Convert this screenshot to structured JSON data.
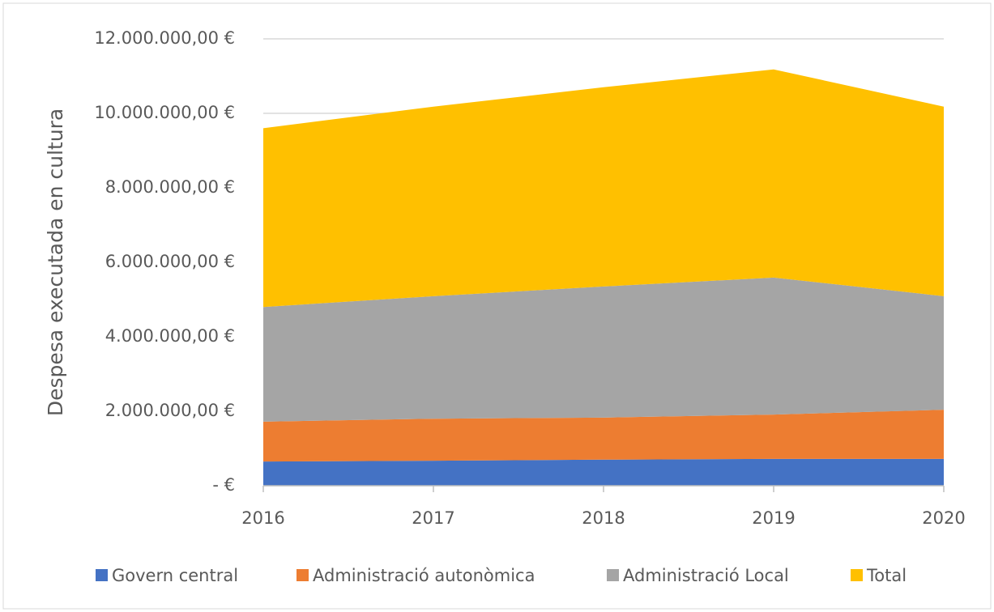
{
  "chart_data": {
    "type": "stacked_area",
    "y_label": "Despesa executada en cultura",
    "categories": [
      "2016",
      "2017",
      "2018",
      "2019",
      "2020"
    ],
    "series": [
      {
        "name": "Govern central",
        "color": "#4472c4",
        "values": [
          650000,
          670000,
          700000,
          720000,
          720000
        ]
      },
      {
        "name": "Administració autonòmica",
        "color": "#ed7d31",
        "values": [
          1070000,
          1130000,
          1130000,
          1190000,
          1320000
        ]
      },
      {
        "name": "Administració Local",
        "color": "#a5a5a5",
        "values": [
          3080000,
          3290000,
          3520000,
          3680000,
          3050000
        ]
      },
      {
        "name": "Total",
        "color": "#ffc000",
        "values": [
          4800000,
          5090000,
          5350000,
          5590000,
          5090000
        ]
      }
    ],
    "ylim": [
      0,
      12000000
    ],
    "yticks": [
      {
        "value": 0,
        "label": "-  €"
      },
      {
        "value": 2000000,
        "label": "2.000.000,00 €"
      },
      {
        "value": 4000000,
        "label": "4.000.000,00 €"
      },
      {
        "value": 6000000,
        "label": "6.000.000,00 €"
      },
      {
        "value": 8000000,
        "label": "8.000.000,00 €"
      },
      {
        "value": 10000000,
        "label": "10.000.000,00 €"
      },
      {
        "value": 12000000,
        "label": "12.000.000,00 €"
      }
    ],
    "grid": true,
    "legend": "bottom"
  }
}
